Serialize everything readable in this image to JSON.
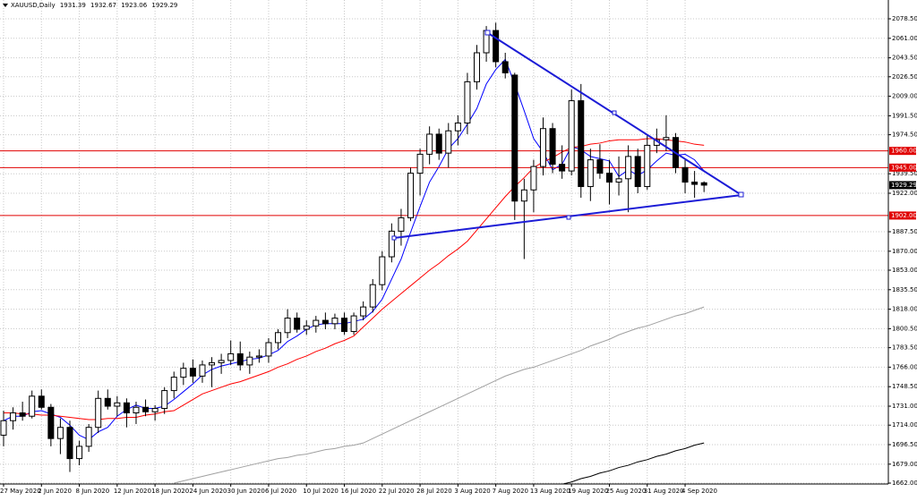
{
  "chart_data": {
    "type": "candlestick",
    "title": "XAUUSD,Daily",
    "categories": [
      "27 May 2020",
      null,
      null,
      null,
      "2 Jun 2020",
      null,
      null,
      null,
      "8 Jun 2020",
      null,
      null,
      null,
      "12 Jun 2020",
      null,
      null,
      null,
      "18 Jun 2020",
      null,
      null,
      null,
      "24 Jun 2020",
      null,
      null,
      null,
      "30 Jun 2020",
      null,
      null,
      null,
      "6 Jul 2020",
      null,
      null,
      null,
      "10 Jul 2020",
      null,
      null,
      null,
      "16 Jul 2020",
      null,
      null,
      null,
      "22 Jul 2020",
      null,
      null,
      null,
      "28 Jul 2020",
      null,
      null,
      null,
      "3 Aug 2020",
      null,
      null,
      null,
      "7 Aug 2020",
      null,
      null,
      null,
      "13 Aug 2020",
      null,
      null,
      null,
      "19 Aug 2020",
      null,
      null,
      null,
      "25 Aug 2020",
      null,
      null,
      null,
      "31 Aug 2020",
      null,
      null,
      null,
      "4 Sep 2020",
      null,
      null
    ],
    "open": [
      1705,
      1718,
      1725,
      1722,
      1740,
      1730,
      1702,
      1712,
      1684,
      1695,
      1712,
      1738,
      1731,
      1734,
      1725,
      1730,
      1726,
      1729,
      1745,
      1757,
      1765,
      1758,
      1768,
      1770,
      1772,
      1778,
      1768,
      1775,
      1776,
      1788,
      1797,
      1810,
      1800,
      1803,
      1808,
      1805,
      1810,
      1798,
      1812,
      1820,
      1840,
      1865,
      1888,
      1900,
      1940,
      1957,
      1975,
      1958,
      1978,
      1985,
      2022,
      2048,
      2068,
      2040,
      2028,
      1915,
      1925,
      1946,
      1980,
      1948,
      1942,
      2005,
      1928,
      1952,
      1940,
      1932,
      1935,
      1955,
      1928,
      1965,
      1970,
      1972,
      1945,
      1932,
      1931.39
    ],
    "high": [
      1727,
      1730,
      1735,
      1745,
      1746,
      1733,
      1720,
      1718,
      1700,
      1715,
      1745,
      1746,
      1740,
      1738,
      1735,
      1737,
      1732,
      1748,
      1762,
      1770,
      1773,
      1772,
      1775,
      1778,
      1790,
      1789,
      1780,
      1782,
      1792,
      1800,
      1818,
      1815,
      1808,
      1812,
      1815,
      1814,
      1815,
      1815,
      1825,
      1845,
      1870,
      1895,
      1908,
      1945,
      1962,
      1982,
      1980,
      1985,
      1992,
      2030,
      2055,
      2072,
      2075,
      2048,
      2030,
      1935,
      1952,
      1990,
      1985,
      1965,
      2015,
      2020,
      1962,
      1966,
      1952,
      1955,
      1965,
      1962,
      1975,
      1980,
      1992,
      1976,
      1952,
      1942,
      1932.67
    ],
    "low": [
      1695,
      1710,
      1718,
      1720,
      1728,
      1695,
      1688,
      1672,
      1678,
      1690,
      1707,
      1728,
      1722,
      1712,
      1715,
      1722,
      1718,
      1724,
      1738,
      1750,
      1752,
      1752,
      1748,
      1760,
      1768,
      1763,
      1760,
      1770,
      1770,
      1782,
      1792,
      1797,
      1795,
      1797,
      1800,
      1800,
      1795,
      1795,
      1808,
      1815,
      1835,
      1860,
      1875,
      1897,
      1920,
      1948,
      1952,
      1945,
      1965,
      1975,
      2015,
      2040,
      2035,
      2025,
      1898,
      1863,
      1905,
      1938,
      1940,
      1935,
      1938,
      1918,
      1915,
      1935,
      1912,
      1920,
      1905,
      1922,
      1925,
      1958,
      1960,
      1940,
      1922,
      1918,
      1923.06
    ],
    "close": [
      1718,
      1725,
      1722,
      1740,
      1730,
      1702,
      1712,
      1684,
      1695,
      1712,
      1738,
      1731,
      1734,
      1725,
      1730,
      1726,
      1729,
      1745,
      1757,
      1765,
      1758,
      1768,
      1770,
      1772,
      1778,
      1768,
      1775,
      1776,
      1788,
      1797,
      1810,
      1800,
      1803,
      1808,
      1805,
      1810,
      1798,
      1812,
      1820,
      1840,
      1865,
      1888,
      1900,
      1940,
      1957,
      1975,
      1958,
      1978,
      1985,
      2022,
      2048,
      2068,
      2040,
      2030,
      1915,
      1925,
      1946,
      1980,
      1948,
      1942,
      2005,
      1928,
      1952,
      1940,
      1932,
      1935,
      1955,
      1928,
      1965,
      1970,
      1972,
      1945,
      1932,
      1930,
      1929.29
    ],
    "up_color": "#ffffff",
    "down_color": "#000000",
    "series": [
      {
        "color": "#0000ff",
        "values": [
          1718,
          1722,
          1722,
          1726,
          1727,
          1724,
          1721,
          1714,
          1705,
          1701,
          1708,
          1712,
          1722,
          1728,
          1732,
          1729,
          1729,
          1731,
          1737,
          1744,
          1751,
          1759,
          1764,
          1767,
          1769,
          1771,
          1773,
          1774,
          1777,
          1781,
          1789,
          1794,
          1800,
          1804,
          1805,
          1805,
          1805,
          1807,
          1809,
          1816,
          1827,
          1845,
          1863,
          1887,
          1910,
          1932,
          1946,
          1962,
          1971,
          1984,
          1998,
          2020,
          2033,
          2042,
          2020,
          1996,
          1971,
          1959,
          1943,
          1948,
          1964,
          1961,
          1955,
          1953,
          1951,
          1937,
          1943,
          1938,
          1943,
          1951,
          1958,
          1956,
          1957,
          1952,
          1942
        ]
      },
      {
        "color": "#ff0000",
        "values": [
          1725,
          1725,
          1724,
          1724,
          1723,
          1723,
          1722,
          1721,
          1720,
          1719,
          1719,
          1720,
          1720,
          1721,
          1721,
          1723,
          1724,
          1726,
          1727,
          1732,
          1737,
          1742,
          1745,
          1748,
          1751,
          1753,
          1756,
          1759,
          1762,
          1766,
          1769,
          1773,
          1776,
          1780,
          1783,
          1787,
          1790,
          1794,
          1802,
          1810,
          1818,
          1825,
          1832,
          1839,
          1846,
          1853,
          1859,
          1866,
          1872,
          1879,
          1889,
          1899,
          1909,
          1919,
          1928,
          1936,
          1945,
          1950,
          1954,
          1959,
          1963,
          1964,
          1966,
          1967,
          1969,
          1970,
          1970,
          1970,
          1971,
          1971,
          1970,
          1969,
          1968,
          1966,
          1965
        ]
      },
      {
        "color": "#a0a0a0",
        "values": [
          null,
          null,
          null,
          null,
          null,
          null,
          null,
          null,
          null,
          null,
          null,
          null,
          null,
          null,
          null,
          null,
          null,
          null,
          1662,
          1664,
          1666,
          1668,
          1670,
          1672,
          1674,
          1676,
          1678,
          1680,
          1682,
          1684,
          1685,
          1687,
          1688,
          1690,
          1692,
          1693,
          1695,
          1696,
          1698,
          1702,
          1706,
          1710,
          1714,
          1718,
          1722,
          1726,
          1730,
          1734,
          1738,
          1742,
          1746,
          1750,
          1754,
          1758,
          1761,
          1764,
          1766,
          1769,
          1772,
          1775,
          1778,
          1781,
          1785,
          1788,
          1791,
          1795,
          1798,
          1801,
          1803,
          1806,
          1809,
          1812,
          1814,
          1817,
          1820
        ]
      },
      {
        "color": "#000000",
        "values": [
          null,
          null,
          null,
          null,
          null,
          null,
          null,
          null,
          null,
          null,
          null,
          null,
          null,
          null,
          null,
          null,
          null,
          null,
          null,
          null,
          null,
          null,
          null,
          null,
          null,
          null,
          null,
          null,
          null,
          null,
          null,
          null,
          null,
          null,
          null,
          null,
          null,
          null,
          null,
          null,
          null,
          null,
          null,
          null,
          null,
          null,
          null,
          null,
          null,
          null,
          null,
          null,
          null,
          null,
          null,
          null,
          null,
          null,
          null,
          1661,
          1663,
          1666,
          1668,
          1671,
          1673,
          1676,
          1678,
          1681,
          1683,
          1686,
          1688,
          1691,
          1693,
          1696,
          1698
        ]
      }
    ],
    "levels": [
      {
        "value": 1960,
        "label": "1960.00",
        "color": "#e00000"
      },
      {
        "value": 1945,
        "label": "1945.00",
        "color": "#e00000"
      },
      {
        "value": 1902,
        "label": "1902.00",
        "color": "#e00000"
      }
    ],
    "ylim": [
      1661.2,
      2095.35
    ],
    "yticks": [
      {
        "value": 2078.5,
        "label": "2078.50"
      },
      {
        "value": 2061,
        "label": "2061.00"
      },
      {
        "value": 2043.5,
        "label": "2043.50"
      },
      {
        "value": 2026.5,
        "label": "2026.50"
      },
      {
        "value": 2009,
        "label": "2009.00"
      },
      {
        "value": 1991.5,
        "label": "1991.50"
      },
      {
        "value": 1974.5,
        "label": "1974.50"
      },
      {
        "value": 1939.5,
        "label": "1939.50"
      },
      {
        "value": 1922,
        "label": "1922.00"
      },
      {
        "value": 1887.5,
        "label": "1887.50"
      },
      {
        "value": 1870,
        "label": "1870.00"
      },
      {
        "value": 1853,
        "label": "1853.00"
      },
      {
        "value": 1835.5,
        "label": "1835.50"
      },
      {
        "value": 1818,
        "label": "1818.00"
      },
      {
        "value": 1800.5,
        "label": "1800.50"
      },
      {
        "value": 1783.5,
        "label": "1783.50"
      },
      {
        "value": 1766,
        "label": "1766.00"
      },
      {
        "value": 1748.5,
        "label": "1748.50"
      },
      {
        "value": 1731,
        "label": "1731.00"
      },
      {
        "value": 1714,
        "label": "1714.00"
      },
      {
        "value": 1696.5,
        "label": "1696.50"
      },
      {
        "value": 1679,
        "label": "1679.00"
      },
      {
        "value": 1662,
        "label": "1662.00"
      }
    ],
    "grid": true
  }
}
